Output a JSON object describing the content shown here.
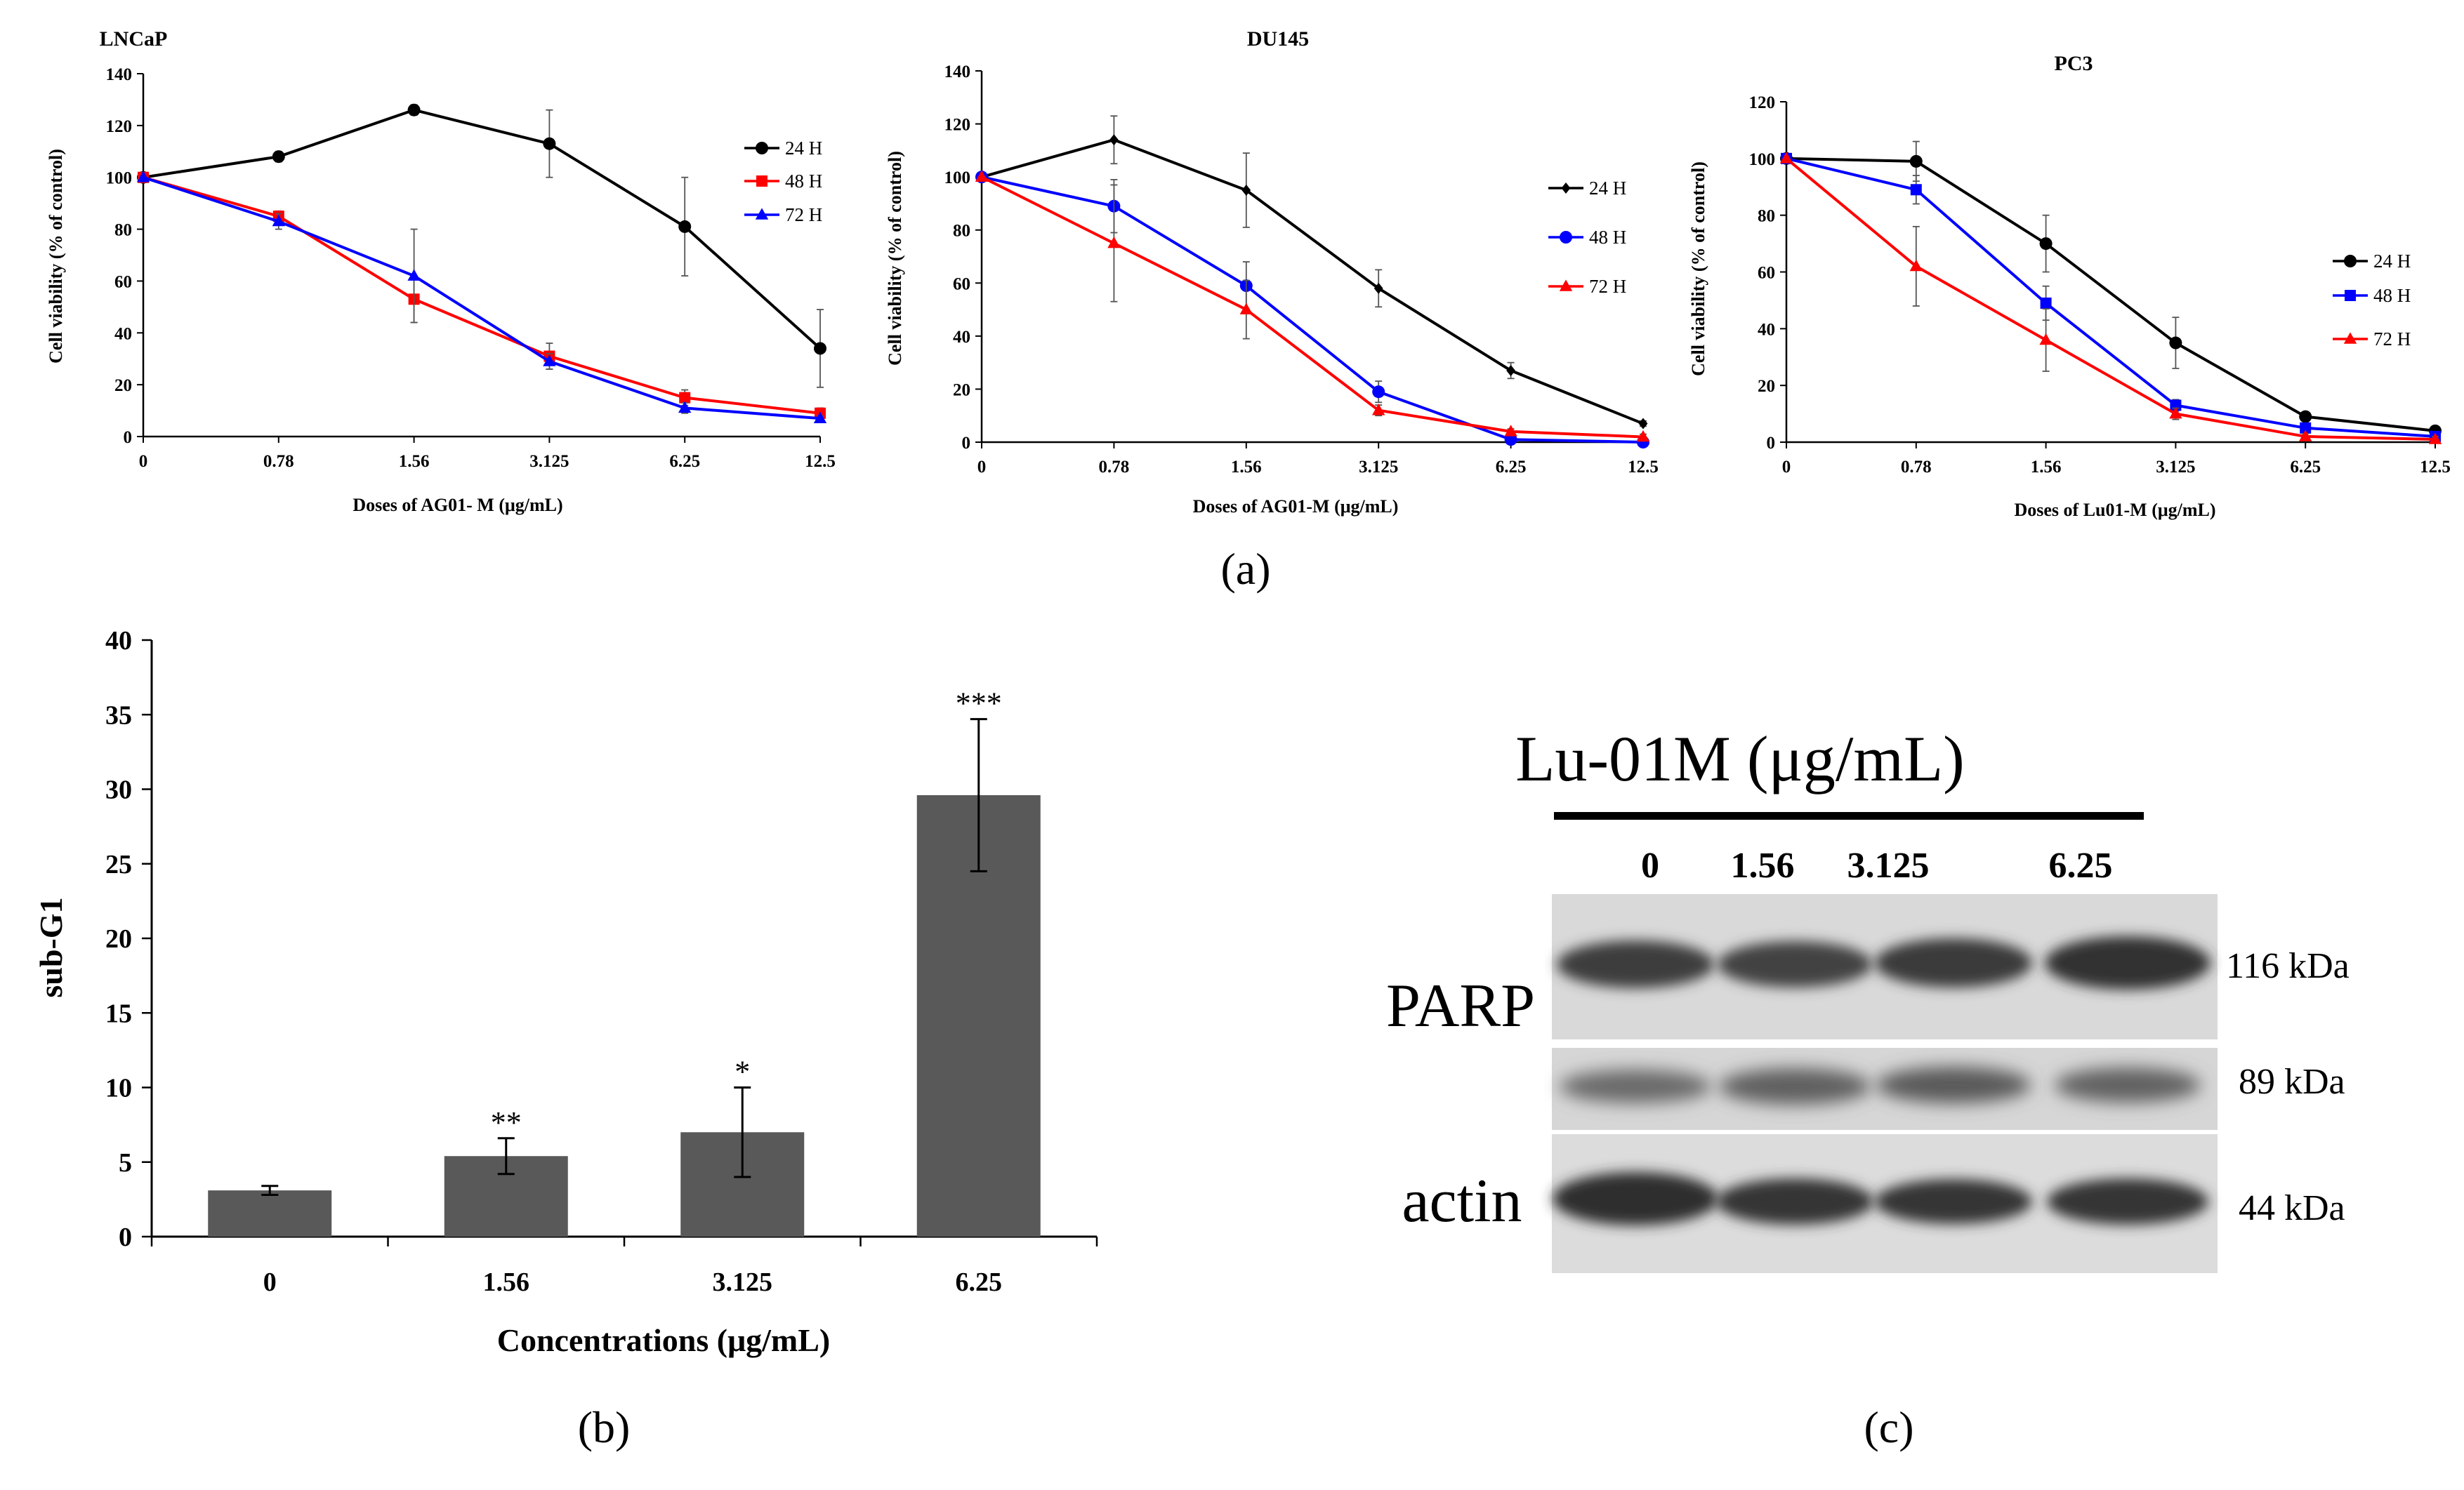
{
  "panel_labels": {
    "a": "(a)",
    "b": "(b)",
    "c": "(c)"
  },
  "chart_data": [
    {
      "type": "line",
      "title": "LNCaP",
      "xlabel": "Doses of AG01- M (μg/mL)",
      "ylabel": "Cell viability (% of control)",
      "categories": [
        "0",
        "0.78",
        "1.56",
        "3.125",
        "6.25",
        "12.5"
      ],
      "ylim": [
        0,
        140
      ],
      "yticks": [
        0,
        20,
        40,
        60,
        80,
        100,
        120,
        140
      ],
      "legend_position": "right",
      "series": [
        {
          "name": "24 H",
          "color": "#000000",
          "marker": "circle",
          "values": [
            100,
            108,
            126,
            113,
            81,
            34
          ],
          "errors": [
            0,
            2,
            2,
            13,
            19,
            15
          ]
        },
        {
          "name": "48 H",
          "color": "#ff0000",
          "marker": "square",
          "values": [
            100,
            85,
            53,
            31,
            15,
            9
          ],
          "errors": [
            0,
            2,
            9,
            5,
            3,
            2
          ]
        },
        {
          "name": "72 H",
          "color": "#0000ff",
          "marker": "triangle",
          "values": [
            100,
            83,
            62,
            29,
            11,
            7
          ],
          "errors": [
            0,
            3,
            18,
            3,
            2,
            1
          ]
        }
      ]
    },
    {
      "type": "line",
      "title": "DU145",
      "xlabel": "Doses of AG01-M (μg/mL)",
      "ylabel": "Cell viability (% of control)",
      "categories": [
        "0",
        "0.78",
        "1.56",
        "3.125",
        "6.25",
        "12.5"
      ],
      "ylim": [
        0,
        140
      ],
      "yticks": [
        0,
        20,
        40,
        60,
        80,
        100,
        120,
        140
      ],
      "legend_position": "right",
      "series": [
        {
          "name": "24 H",
          "color": "#000000",
          "marker": "diamond",
          "values": [
            100,
            114,
            95,
            58,
            27,
            7
          ],
          "errors": [
            0,
            9,
            14,
            7,
            3,
            1
          ]
        },
        {
          "name": "48 H",
          "color": "#0000ff",
          "marker": "circle",
          "values": [
            100,
            89,
            59,
            19,
            1,
            0
          ],
          "errors": [
            0,
            10,
            9,
            4,
            1,
            0
          ]
        },
        {
          "name": "72 H",
          "color": "#ff0000",
          "marker": "triangle",
          "values": [
            100,
            75,
            50,
            12,
            4,
            2
          ],
          "errors": [
            0,
            22,
            11,
            2,
            1,
            1
          ]
        }
      ]
    },
    {
      "type": "line",
      "title": "PC3",
      "xlabel": "Doses of Lu01-M (μg/mL)",
      "ylabel": "Cell viability (% of control)",
      "categories": [
        "0",
        "0.78",
        "1.56",
        "3.125",
        "6.25",
        "12.5"
      ],
      "ylim": [
        0,
        120
      ],
      "yticks": [
        0,
        20,
        40,
        60,
        80,
        100,
        120
      ],
      "legend_position": "right",
      "series": [
        {
          "name": "24 H",
          "color": "#000000",
          "marker": "circle",
          "values": [
            100,
            99,
            70,
            35,
            9,
            4
          ],
          "errors": [
            0,
            7,
            10,
            9,
            1,
            1
          ]
        },
        {
          "name": "48 H",
          "color": "#0000ff",
          "marker": "square",
          "values": [
            100,
            89,
            49,
            13,
            5,
            2
          ],
          "errors": [
            0,
            5,
            6,
            2,
            1,
            1
          ]
        },
        {
          "name": "72 H",
          "color": "#ff0000",
          "marker": "triangle",
          "values": [
            100,
            62,
            36,
            10,
            2,
            1
          ],
          "errors": [
            0,
            14,
            11,
            2,
            1,
            1
          ]
        }
      ]
    },
    {
      "type": "bar",
      "title": "",
      "xlabel": "Concentrations (μg/mL)",
      "ylabel": "sub-G1",
      "categories": [
        "0",
        "1.56",
        "3.125",
        "6.25"
      ],
      "values": [
        3.1,
        5.4,
        7.0,
        29.6
      ],
      "errors": [
        0.3,
        1.2,
        3.0,
        5.1
      ],
      "significance": [
        "",
        "**",
        "*",
        "***"
      ],
      "ylim": [
        0,
        40
      ],
      "yticks": [
        0,
        5,
        10,
        15,
        20,
        25,
        30,
        35,
        40
      ],
      "bar_color": "#595959"
    }
  ],
  "western_blot": {
    "header": "Lu-01M (μg/mL)",
    "lanes": [
      "0",
      "1.56",
      "3.125",
      "6.25"
    ],
    "proteins": [
      "PARP",
      "actin"
    ],
    "kda": [
      "116 kDa",
      "89 kDa",
      "44 kDa"
    ]
  }
}
